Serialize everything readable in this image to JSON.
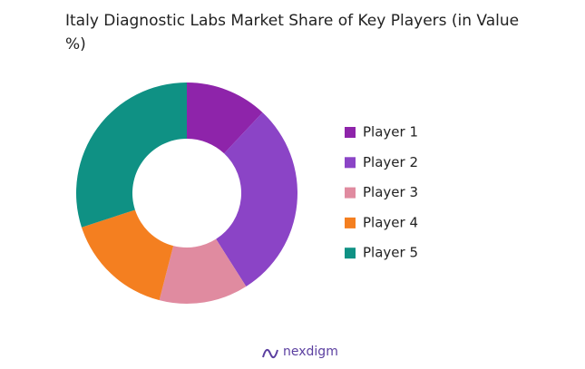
{
  "chart_data": {
    "type": "donut",
    "title": "Italy Diagnostic Labs Market Share of Key Players (in Value %)",
    "categories": [
      "Player 1",
      "Player 2",
      "Player 3",
      "Player 4",
      "Player 5"
    ],
    "values": [
      12,
      29,
      13,
      16,
      30
    ],
    "colors": [
      "#8e24aa",
      "#8b44c6",
      "#e08ba0",
      "#f47f20",
      "#0f9184"
    ],
    "legend": "right"
  },
  "logo_text": "nexdigm"
}
